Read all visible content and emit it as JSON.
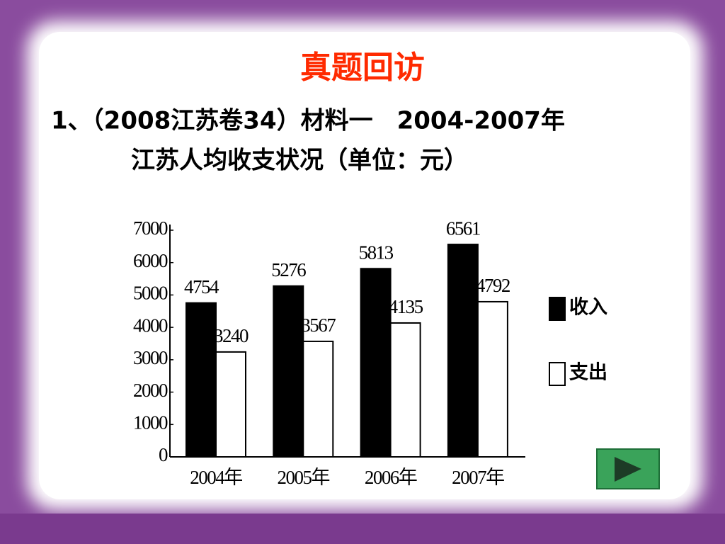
{
  "slide": {
    "title": "真题回访",
    "subtitle": [
      "1、（2008江苏卷34）材料一　2004-2007年",
      "江苏人均收支状况（单位：元）"
    ]
  },
  "chart_data": {
    "type": "bar",
    "categories": [
      "2004年",
      "2005年",
      "2006年",
      "2007年"
    ],
    "series": [
      {
        "name": "收入",
        "color": "#000000",
        "values": [
          4754,
          5276,
          5813,
          6561
        ]
      },
      {
        "name": "支出",
        "color": "#ffffff",
        "values": [
          3240,
          3567,
          4135,
          4792
        ]
      }
    ],
    "ylim": [
      0,
      7000
    ],
    "yticks": [
      0,
      1000,
      2000,
      3000,
      4000,
      5000,
      6000,
      7000
    ],
    "grid": false,
    "legend": "right"
  }
}
